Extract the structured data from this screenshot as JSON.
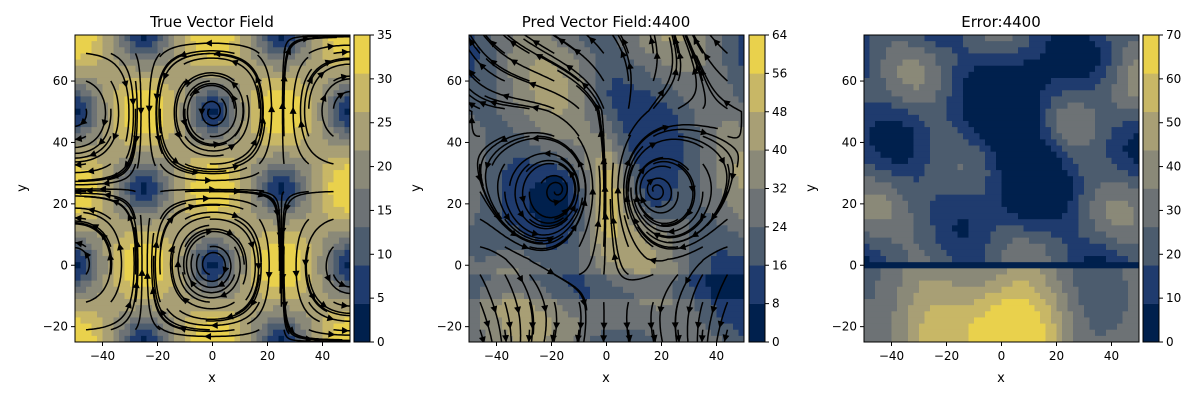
{
  "chart_data": [
    {
      "type": "heatmap",
      "title": "True Vector Field",
      "xlabel": "x",
      "ylabel": "y",
      "xlim": [
        -50,
        50
      ],
      "ylim": [
        -25,
        75
      ],
      "xticks": [
        -40,
        -20,
        0,
        20,
        40
      ],
      "yticks": [
        -20,
        0,
        20,
        40,
        60
      ],
      "colorbar": {
        "min": 0,
        "max": 35,
        "ticks": [
          0,
          5,
          10,
          15,
          20,
          25,
          30,
          35
        ]
      },
      "field": "periodic vortex grid, vortex centers at x = -25, 25, y = 25, 75",
      "overlay": "streamlines"
    },
    {
      "type": "heatmap",
      "title": "Pred Vector Field:4400",
      "xlabel": "x",
      "ylabel": "y",
      "xlim": [
        -50,
        50
      ],
      "ylim": [
        -25,
        75
      ],
      "xticks": [
        -40,
        -20,
        0,
        20,
        40
      ],
      "yticks": [
        -20,
        0,
        20,
        40,
        60
      ],
      "colorbar": {
        "min": 0,
        "max": 64,
        "ticks": [
          0,
          8,
          16,
          24,
          32,
          40,
          48,
          56,
          64
        ]
      },
      "field": "two vortices near (-15, 25) and (15, 25), high-speed jet along x = 0",
      "overlay": "streamlines"
    },
    {
      "type": "heatmap",
      "title": "Error:4400",
      "xlabel": "x",
      "ylabel": "y",
      "xlim": [
        -50,
        50
      ],
      "ylim": [
        -25,
        75
      ],
      "xticks": [
        -40,
        -20,
        0,
        20,
        40
      ],
      "yticks": [
        -20,
        0,
        20,
        40,
        60
      ],
      "colorbar": {
        "min": 0,
        "max": 70,
        "ticks": [
          0,
          10,
          20,
          30,
          40,
          50,
          60,
          70
        ]
      },
      "field": "high error at bottom center (y < 0), low error near y = 0 band and upper center"
    }
  ],
  "colors": {
    "scale": [
      "#00204d",
      "#1f3b6e",
      "#4c5c6e",
      "#6d7275",
      "#8a8978",
      "#a89f75",
      "#c8b766",
      "#e9d14c"
    ],
    "stream": "#000000"
  }
}
